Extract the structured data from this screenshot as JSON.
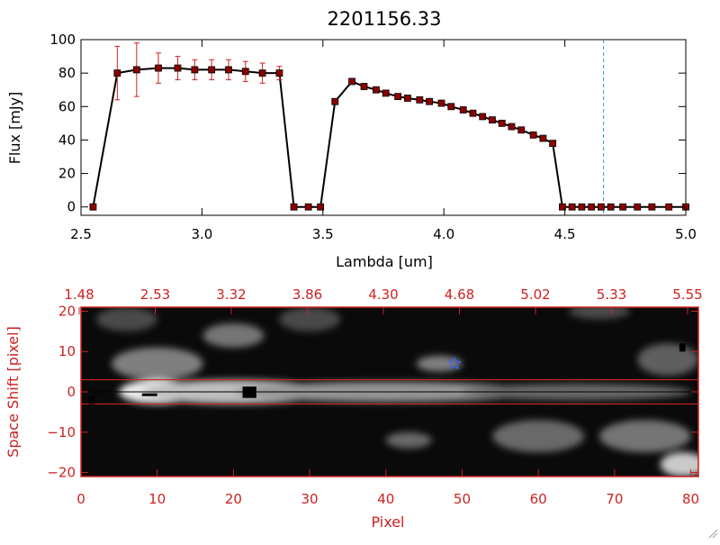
{
  "colors": {
    "axis": "#000000",
    "red": "#cc2222",
    "marker": "#8b0000",
    "error": "#cc2222",
    "cyan": "#3399cc",
    "star": "#3366ff",
    "text_black": "#000000",
    "text_red": "#cc2222"
  },
  "chart_data": [
    {
      "type": "line",
      "title": "2201156.33",
      "xlabel": "Lambda [um]",
      "ylabel": "Flux [mJy]",
      "xlim": [
        2.5,
        5.0
      ],
      "ylim": [
        -5,
        100
      ],
      "xticks": [
        2.5,
        3.0,
        3.5,
        4.0,
        4.5,
        5.0
      ],
      "xtick_labels": [
        "2.5",
        "3.0",
        "3.5",
        "4.0",
        "4.5",
        "5.0"
      ],
      "yticks": [
        0,
        20,
        40,
        60,
        80,
        100
      ],
      "ytick_labels": [
        "0",
        "20",
        "40",
        "60",
        "80",
        "100"
      ],
      "vline_x": 4.66,
      "series": [
        {
          "x": [
            2.55,
            2.65,
            2.73,
            2.82,
            2.9,
            2.97,
            3.04,
            3.11,
            3.18,
            3.25,
            3.32,
            3.38,
            3.44,
            3.49,
            3.55,
            3.62,
            3.67,
            3.72,
            3.76,
            3.81,
            3.85,
            3.9,
            3.94,
            3.99,
            4.03,
            4.08,
            4.12,
            4.16,
            4.2,
            4.24,
            4.28,
            4.32,
            4.37,
            4.41,
            4.45,
            4.49,
            4.53,
            4.57,
            4.61,
            4.65,
            4.69,
            4.74,
            4.8,
            4.86,
            4.93,
            5.0
          ],
          "y": [
            0,
            80,
            82,
            83,
            83,
            82,
            82,
            82,
            81,
            80,
            80,
            0,
            0,
            0,
            63,
            75,
            72,
            70,
            68,
            66,
            65,
            64,
            63,
            62,
            60,
            58,
            56,
            54,
            52,
            50,
            48,
            46,
            43,
            41,
            38,
            0,
            0,
            0,
            0,
            0,
            0,
            0,
            0,
            0,
            0,
            0
          ],
          "yerr": [
            0,
            16,
            16,
            9,
            7,
            6,
            6,
            6,
            6,
            6,
            4,
            0,
            0,
            0,
            0,
            0,
            0,
            0,
            0,
            0,
            0,
            0,
            0,
            0,
            0,
            0,
            0,
            0,
            0,
            0,
            0,
            0,
            0,
            0,
            0,
            0,
            0,
            0,
            0,
            0,
            0,
            0,
            0,
            0,
            0,
            0
          ]
        }
      ]
    },
    {
      "type": "heatmap",
      "xlabel": "Pixel",
      "ylabel": "Space Shift [pixel]",
      "xlim": [
        0,
        81
      ],
      "ylim": [
        -21,
        21
      ],
      "xticks": [
        0,
        10,
        20,
        30,
        40,
        50,
        60,
        70,
        80
      ],
      "xtick_labels": [
        "0",
        "10",
        "20",
        "30",
        "40",
        "50",
        "60",
        "70",
        "80"
      ],
      "yticks": [
        -20,
        -10,
        0,
        10,
        20
      ],
      "ytick_labels": [
        "−20",
        "−10",
        "0",
        "10",
        "20"
      ],
      "top_axis_labels": [
        "1.48",
        "2.53",
        "3.32",
        "3.86",
        "4.30",
        "4.68",
        "5.02",
        "5.33",
        "5.55"
      ],
      "hlines": [
        3,
        -3
      ],
      "center_line": 0,
      "star_marker": {
        "x": 49,
        "y": 7
      },
      "blobs": [
        {
          "x": 10,
          "y": 0,
          "rx": 5,
          "ry": 3,
          "level": 0.95
        },
        {
          "x": 20,
          "y": 0,
          "rx": 12,
          "ry": 3,
          "level": 0.75
        },
        {
          "x": 40,
          "y": 0,
          "rx": 20,
          "ry": 2.5,
          "level": 0.55
        },
        {
          "x": 65,
          "y": 0,
          "rx": 15,
          "ry": 2,
          "level": 0.35
        },
        {
          "x": 10,
          "y": 7,
          "rx": 6,
          "ry": 4,
          "level": 0.45
        },
        {
          "x": 20,
          "y": 14,
          "rx": 4,
          "ry": 3,
          "level": 0.4
        },
        {
          "x": 47,
          "y": 7,
          "rx": 3,
          "ry": 2,
          "level": 0.45
        },
        {
          "x": 43,
          "y": -12,
          "rx": 3,
          "ry": 2,
          "level": 0.35
        },
        {
          "x": 60,
          "y": -11,
          "rx": 6,
          "ry": 4,
          "level": 0.35
        },
        {
          "x": 74,
          "y": -11,
          "rx": 6,
          "ry": 4,
          "level": 0.4
        },
        {
          "x": 79,
          "y": -18,
          "rx": 3,
          "ry": 3,
          "level": 0.8
        },
        {
          "x": 77,
          "y": 8,
          "rx": 4,
          "ry": 4,
          "level": 0.3
        },
        {
          "x": 6,
          "y": 18,
          "rx": 4,
          "ry": 3,
          "level": 0.2
        },
        {
          "x": 30,
          "y": 18,
          "rx": 4,
          "ry": 3,
          "level": 0.2
        },
        {
          "x": 68,
          "y": 20,
          "rx": 4,
          "ry": 2,
          "level": 0.2
        }
      ]
    }
  ]
}
